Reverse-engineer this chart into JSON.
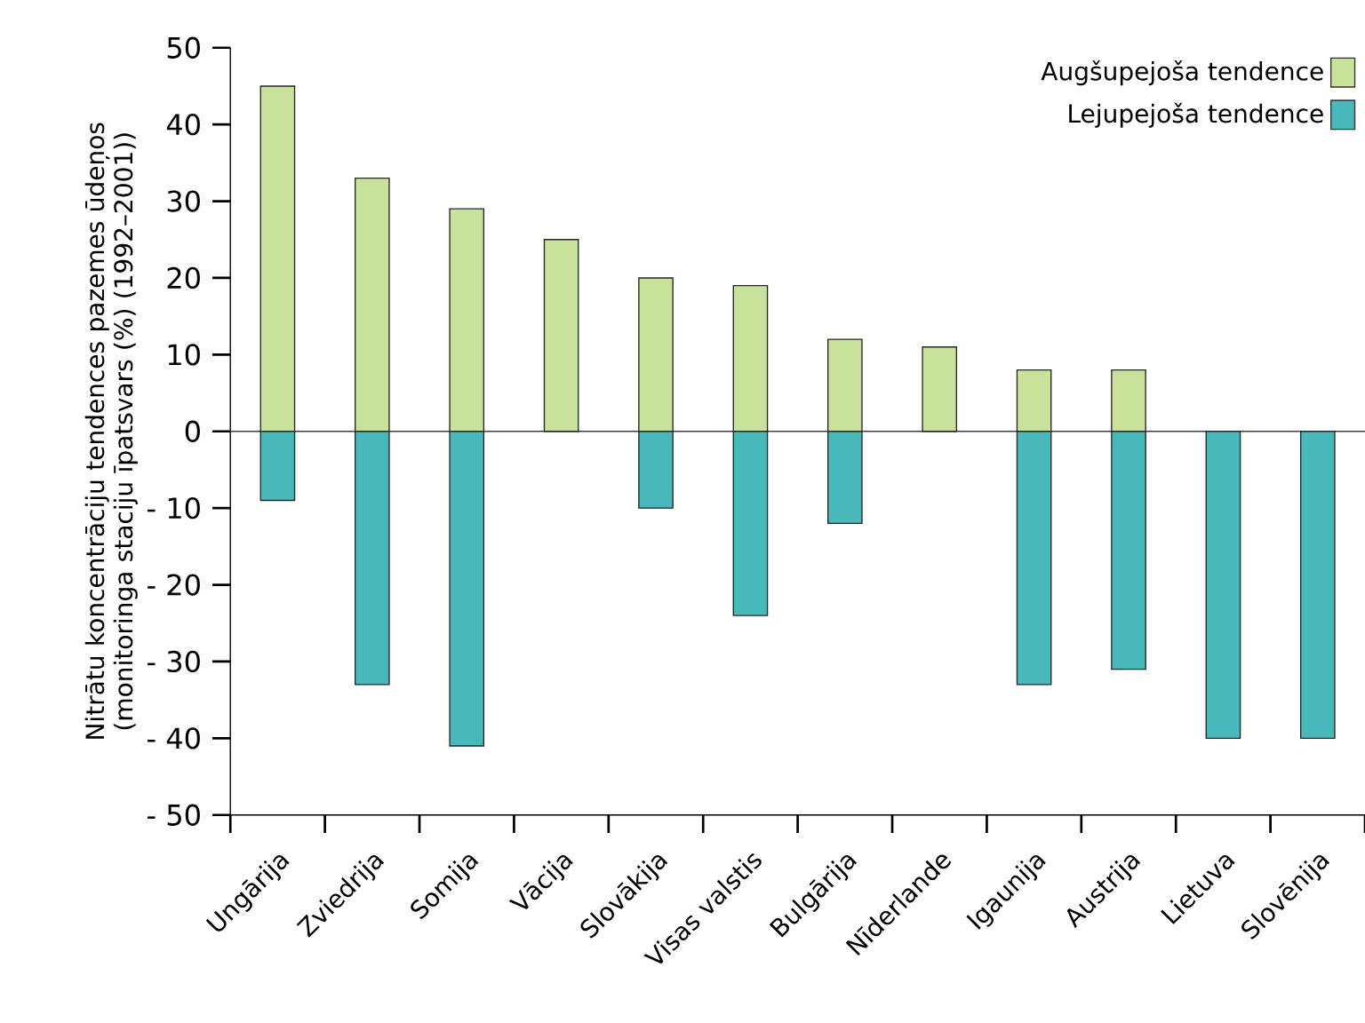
{
  "chart_data": {
    "type": "bar",
    "ylabel": "Nitrātu koncentrāciju tendences pazemes ūdeņos (monitoringa staciju īpatsvars (%) (1992–2001))",
    "categories": [
      "Ungārija",
      "Zviedrija",
      "Somija",
      "Vācija",
      "Slovākija",
      "Visas valstis",
      "Bulgārija",
      "Nīderlande",
      "Igaunija",
      "Austrija",
      "Lietuva",
      "Slovēnija"
    ],
    "series": [
      {
        "name": "Augšupejoša tendence",
        "color": "#c8e19b",
        "values": [
          45,
          33,
          29,
          25,
          20,
          19,
          12,
          11,
          8,
          8,
          0,
          0
        ]
      },
      {
        "name": "Lejupejoša tendence",
        "color": "#48b8bb",
        "values": [
          -9,
          -33,
          -41,
          0,
          -10,
          -24,
          -12,
          0,
          -33,
          -31,
          -40,
          -40
        ]
      }
    ],
    "ylim": [
      -50,
      50
    ],
    "yticks": [
      {
        "value": -50,
        "label": "- 50"
      },
      {
        "value": -40,
        "label": "- 40"
      },
      {
        "value": -30,
        "label": "- 30"
      },
      {
        "value": -20,
        "label": "- 20"
      },
      {
        "value": -10,
        "label": "- 10"
      },
      0,
      10,
      20,
      30,
      40,
      50
    ],
    "ref_lines": [
      {
        "axis": "y",
        "value": 0,
        "color": "#404040"
      }
    ],
    "legend": "top right",
    "stacked": true,
    "grid": false
  }
}
